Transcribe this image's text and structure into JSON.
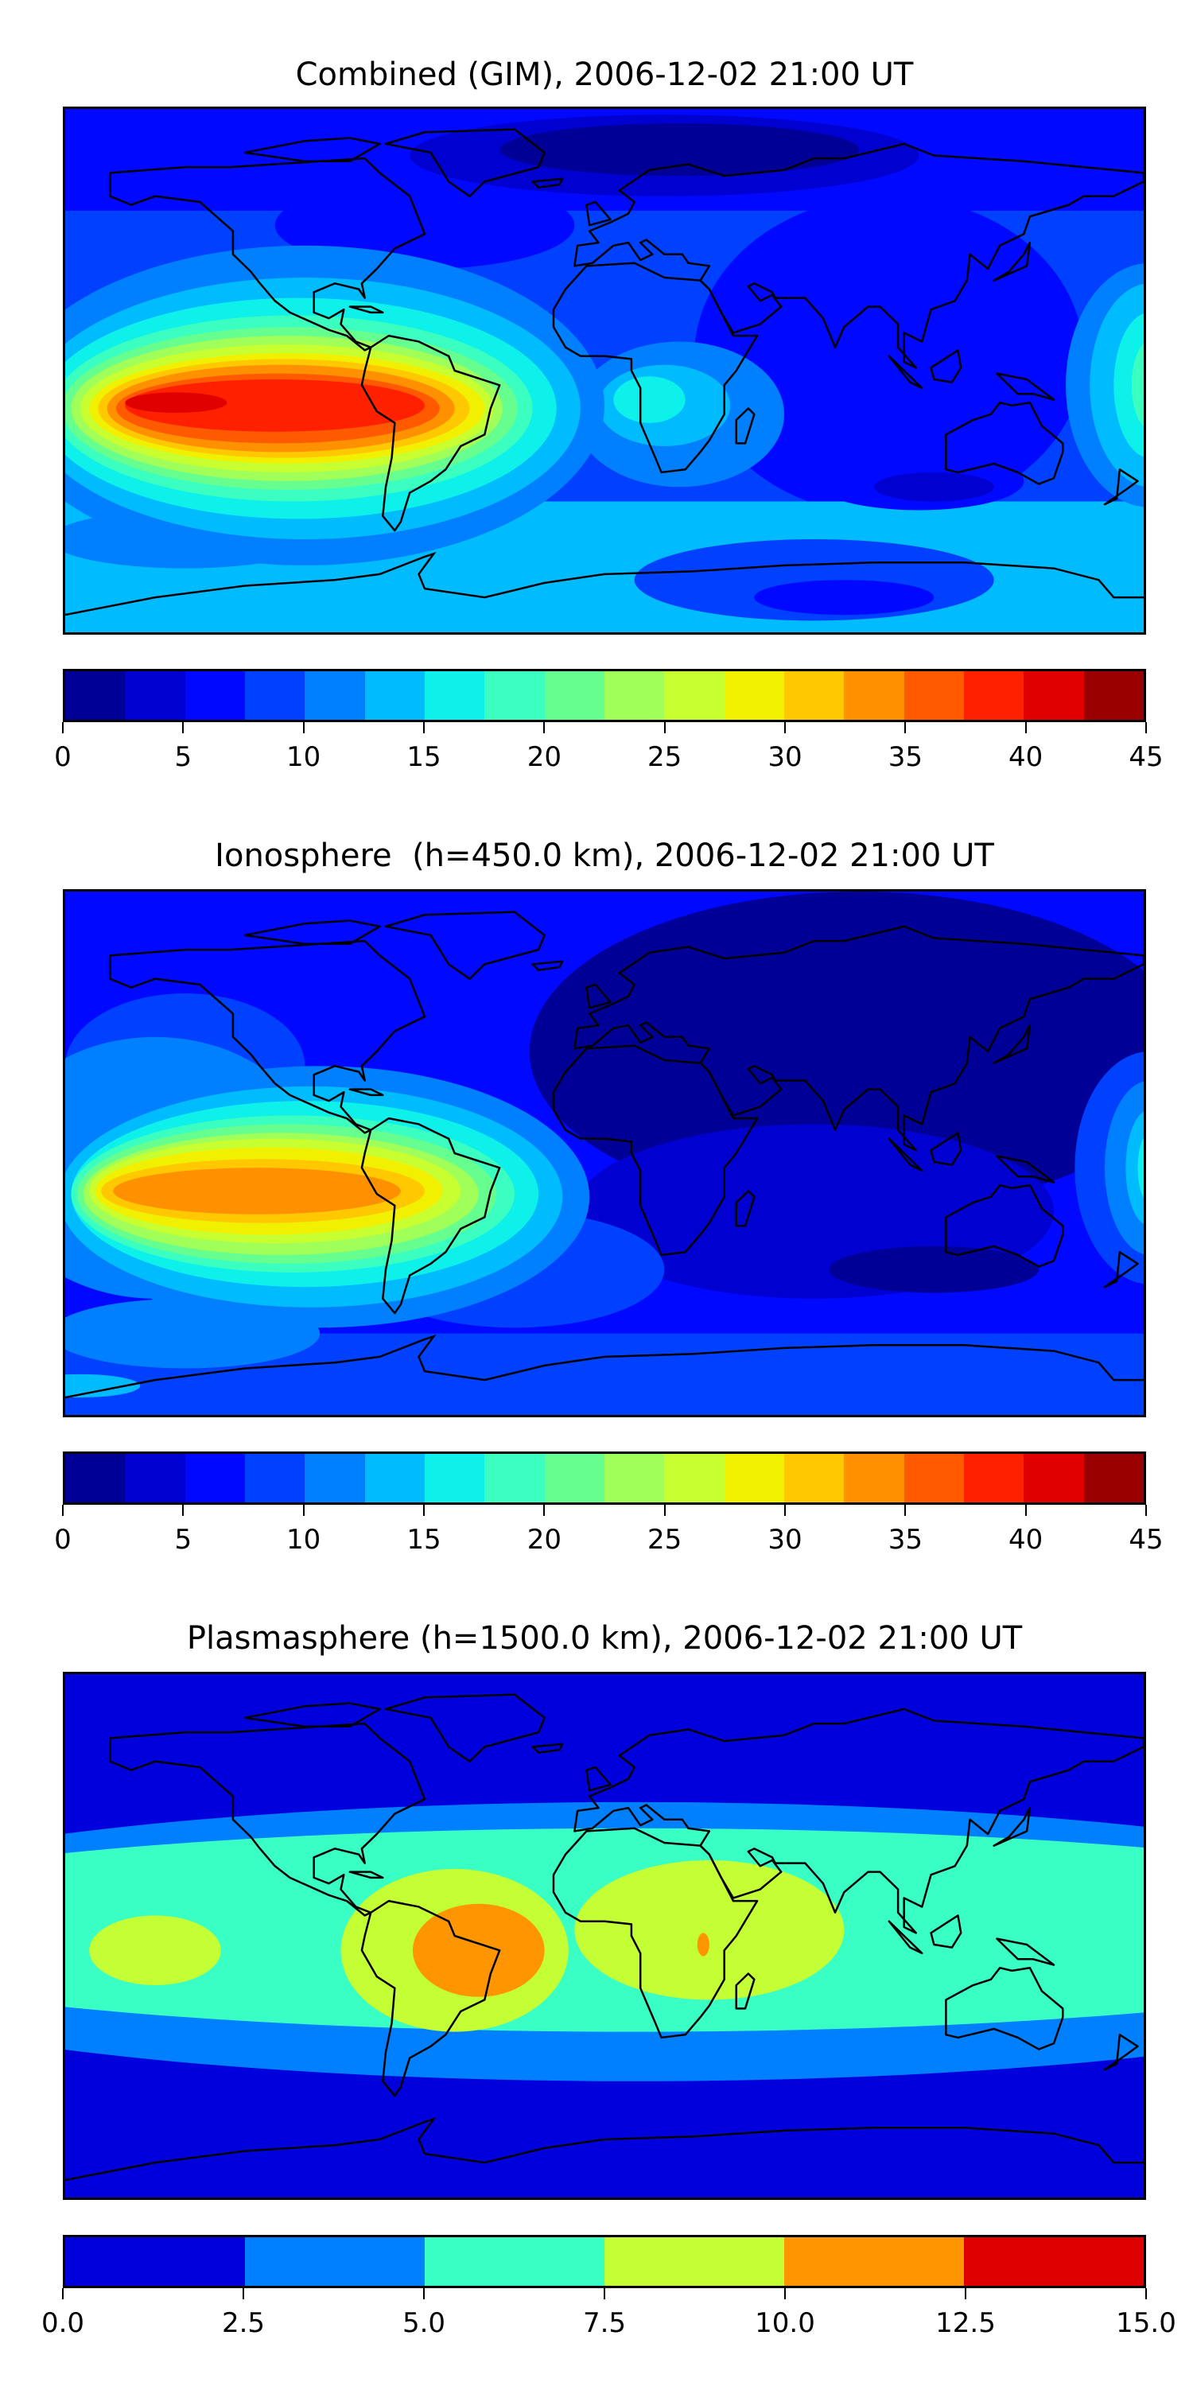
{
  "chart_data": [
    {
      "type": "heatmap",
      "subtype": "filled-contour world map",
      "title": "Combined (GIM), 2006-12-02 21:00 UT",
      "xlim": [
        -180,
        180
      ],
      "ylim": [
        -90,
        90
      ],
      "levels": [
        0,
        2.5,
        5,
        7.5,
        10,
        12.5,
        15,
        17.5,
        20,
        22.5,
        25,
        27.5,
        30,
        32.5,
        35,
        37.5,
        40,
        42.5,
        45
      ],
      "colors": [
        "#000096",
        "#0000d0",
        "#0008ff",
        "#0040ff",
        "#0080ff",
        "#00bcff",
        "#0ef0ea",
        "#3affc0",
        "#66ff8f",
        "#a0ff58",
        "#c8ff30",
        "#f0f000",
        "#ffc800",
        "#ff9000",
        "#ff5a00",
        "#ff2000",
        "#e00000",
        "#9a0000"
      ],
      "colorbar": {
        "ticks": [
          "0",
          "5",
          "10",
          "15",
          "20",
          "25",
          "30",
          "35",
          "40",
          "45"
        ],
        "tick_values": [
          0,
          5,
          10,
          15,
          20,
          25,
          30,
          35,
          40,
          45
        ],
        "vmin": 0,
        "vmax": 45
      },
      "maximum_level_bin": [
        40,
        42.5
      ],
      "maximum_location_lonlat": [
        -143,
        -11
      ]
    },
    {
      "type": "heatmap",
      "subtype": "filled-contour world map",
      "title": "Ionosphere  (h=450.0 km), 2006-12-02 21:00 UT",
      "xlim": [
        -180,
        180
      ],
      "ylim": [
        -90,
        90
      ],
      "levels": [
        0,
        2.5,
        5,
        7.5,
        10,
        12.5,
        15,
        17.5,
        20,
        22.5,
        25,
        27.5,
        30,
        32.5,
        35,
        37.5,
        40,
        42.5,
        45
      ],
      "colors": [
        "#000096",
        "#0000d0",
        "#0008ff",
        "#0040ff",
        "#0080ff",
        "#00bcff",
        "#0ef0ea",
        "#3affc0",
        "#66ff8f",
        "#a0ff58",
        "#c8ff30",
        "#f0f000",
        "#ffc800",
        "#ff9000",
        "#ff5a00",
        "#ff2000",
        "#e00000",
        "#9a0000"
      ],
      "colorbar": {
        "ticks": [
          "0",
          "5",
          "10",
          "15",
          "20",
          "25",
          "30",
          "35",
          "40",
          "45"
        ],
        "tick_values": [
          0,
          5,
          10,
          15,
          20,
          25,
          30,
          35,
          40,
          45
        ],
        "vmin": 0,
        "vmax": 45
      },
      "maximum_level_bin": [
        32.5,
        35
      ],
      "maximum_location_lonlat": [
        -115,
        -13
      ]
    },
    {
      "type": "heatmap",
      "subtype": "filled-contour world map",
      "title": "Plasmasphere (h=1500.0 km), 2006-12-02 21:00 UT",
      "xlim": [
        -180,
        180
      ],
      "ylim": [
        -90,
        90
      ],
      "levels": [
        0,
        2.5,
        5,
        7.5,
        10,
        12.5,
        15
      ],
      "colors": [
        "#0000dd",
        "#0080ff",
        "#3affc4",
        "#c4ff35",
        "#ff9500",
        "#df0000"
      ],
      "colorbar": {
        "ticks": [
          "0.0",
          "2.5",
          "5.0",
          "7.5",
          "10.0",
          "12.5",
          "15.0"
        ],
        "tick_values": [
          0,
          2.5,
          5,
          7.5,
          10,
          12.5,
          15
        ],
        "vmin": 0,
        "vmax": 15
      },
      "maximum_level_bin": [
        10,
        12.5
      ],
      "maximum_location_lonlat": [
        -45,
        -5
      ]
    }
  ]
}
